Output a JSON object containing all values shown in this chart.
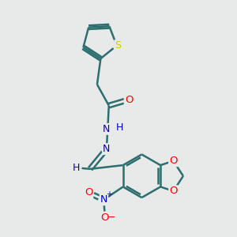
{
  "background_color": "#e8eaea",
  "bond_color": "#2d6e6e",
  "atom_colors": {
    "S": "#cccc00",
    "O": "#ff0000",
    "N": "#0000cc",
    "C": "#2d6e6e",
    "H": "#0000cc"
  },
  "figsize": [
    3.0,
    3.0
  ],
  "dpi": 100,
  "xlim": [
    0,
    10
  ],
  "ylim": [
    0,
    10
  ]
}
